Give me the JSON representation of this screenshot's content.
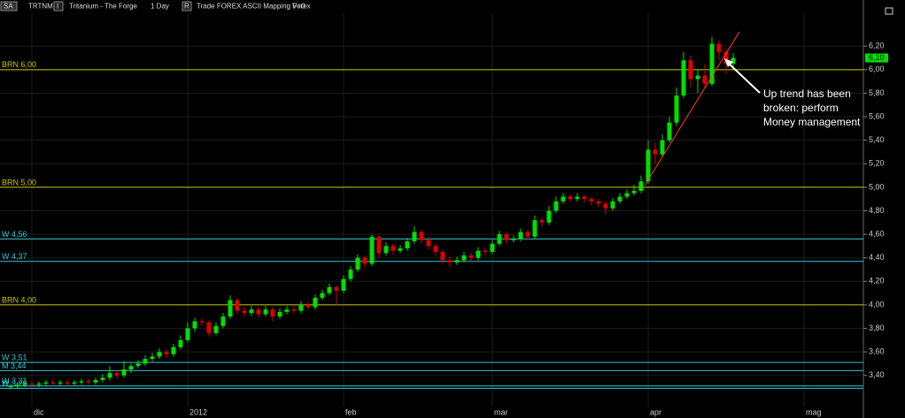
{
  "header": {
    "box1": "SA",
    "symbol": "TRTNM",
    "box2": "I",
    "name": "Tritanium - The Forge",
    "interval": "1 Day",
    "box3": "R",
    "info": "Trade  FOREX  ASCII Mapping  Forex",
    "volume": "V=0"
  },
  "chart_data": {
    "type": "candlestick",
    "ylim": [
      3.135,
      6.48
    ],
    "yticks": [
      {
        "value": 3.4,
        "label": "3,40"
      },
      {
        "value": 3.6,
        "label": "3,60"
      },
      {
        "value": 3.8,
        "label": "3,80"
      },
      {
        "value": 4.0,
        "label": "4,00"
      },
      {
        "value": 4.2,
        "label": "4,20"
      },
      {
        "value": 4.4,
        "label": "4,40"
      },
      {
        "value": 4.6,
        "label": "4,60"
      },
      {
        "value": 4.8,
        "label": "4,80"
      },
      {
        "value": 5.0,
        "label": "5,00"
      },
      {
        "value": 5.2,
        "label": "5,20"
      },
      {
        "value": 5.4,
        "label": "5,40"
      },
      {
        "value": 5.6,
        "label": "5,60"
      },
      {
        "value": 5.8,
        "label": "5,80"
      },
      {
        "value": 6.0,
        "label": "6,00"
      },
      {
        "value": 6.2,
        "label": "6,20"
      }
    ],
    "categories": [
      null,
      null,
      null,
      null,
      "dic",
      null,
      null,
      null,
      null,
      null,
      null,
      null,
      null,
      null,
      null,
      null,
      null,
      null,
      null,
      null,
      null,
      null,
      null,
      null,
      null,
      null,
      "2012",
      null,
      null,
      null,
      null,
      null,
      null,
      null,
      null,
      null,
      null,
      null,
      null,
      null,
      null,
      null,
      null,
      null,
      null,
      null,
      null,
      null,
      "feb",
      null,
      null,
      null,
      null,
      null,
      null,
      null,
      null,
      null,
      null,
      null,
      null,
      null,
      null,
      null,
      null,
      null,
      null,
      null,
      null,
      "mar",
      null,
      null,
      null,
      null,
      null,
      null,
      null,
      null,
      null,
      null,
      null,
      null,
      null,
      null,
      null,
      null,
      null,
      null,
      null,
      null,
      null,
      "apr",
      null,
      null,
      null,
      null,
      null,
      null,
      null,
      null,
      null,
      null,
      null,
      null,
      null,
      null,
      null,
      null,
      null,
      null,
      null,
      null,
      null,
      "mag",
      null,
      null
    ],
    "candles": [
      [
        3.3,
        3.33,
        3.28,
        3.31
      ],
      [
        3.31,
        3.34,
        3.29,
        3.32
      ],
      [
        3.32,
        3.35,
        3.3,
        3.33
      ],
      [
        3.33,
        3.35,
        3.3,
        3.32
      ],
      [
        3.32,
        3.35,
        3.3,
        3.33
      ],
      [
        3.33,
        3.36,
        3.31,
        3.34
      ],
      [
        3.34,
        3.36,
        3.31,
        3.33
      ],
      [
        3.33,
        3.36,
        3.31,
        3.34
      ],
      [
        3.34,
        3.36,
        3.31,
        3.33
      ],
      [
        3.33,
        3.36,
        3.31,
        3.34
      ],
      [
        3.34,
        3.37,
        3.32,
        3.35
      ],
      [
        3.35,
        3.37,
        3.32,
        3.34
      ],
      [
        3.34,
        3.38,
        3.32,
        3.36
      ],
      [
        3.36,
        3.41,
        3.34,
        3.38
      ],
      [
        3.38,
        3.48,
        3.36,
        3.42
      ],
      [
        3.42,
        3.45,
        3.37,
        3.4
      ],
      [
        3.4,
        3.52,
        3.38,
        3.45
      ],
      [
        3.45,
        3.5,
        3.42,
        3.48
      ],
      [
        3.48,
        3.53,
        3.46,
        3.5
      ],
      [
        3.5,
        3.57,
        3.48,
        3.54
      ],
      [
        3.54,
        3.59,
        3.52,
        3.56
      ],
      [
        3.56,
        3.63,
        3.54,
        3.6
      ],
      [
        3.6,
        3.62,
        3.55,
        3.58
      ],
      [
        3.58,
        3.67,
        3.56,
        3.64
      ],
      [
        3.64,
        3.74,
        3.62,
        3.7
      ],
      [
        3.7,
        3.85,
        3.68,
        3.8
      ],
      [
        3.8,
        3.89,
        3.77,
        3.86
      ],
      [
        3.86,
        3.88,
        3.82,
        3.85
      ],
      [
        3.85,
        3.87,
        3.73,
        3.76
      ],
      [
        3.76,
        3.85,
        3.74,
        3.82
      ],
      [
        3.82,
        3.93,
        3.8,
        3.9
      ],
      [
        3.9,
        4.08,
        3.88,
        4.04
      ],
      [
        4.04,
        4.06,
        3.92,
        3.95
      ],
      [
        3.95,
        3.98,
        3.9,
        3.93
      ],
      [
        3.93,
        3.99,
        3.91,
        3.96
      ],
      [
        3.96,
        3.98,
        3.89,
        3.92
      ],
      [
        3.92,
        3.99,
        3.9,
        3.96
      ],
      [
        3.96,
        3.98,
        3.86,
        3.9
      ],
      [
        3.9,
        3.97,
        3.88,
        3.94
      ],
      [
        3.94,
        3.99,
        3.92,
        3.96
      ],
      [
        3.96,
        3.99,
        3.93,
        3.95
      ],
      [
        3.95,
        4.03,
        3.93,
        4.0
      ],
      [
        4.0,
        4.02,
        3.96,
        3.98
      ],
      [
        3.98,
        4.09,
        3.96,
        4.06
      ],
      [
        4.06,
        4.13,
        4.04,
        4.1
      ],
      [
        4.1,
        4.18,
        4.08,
        4.15
      ],
      [
        4.15,
        4.17,
        4.0,
        4.12
      ],
      [
        4.12,
        4.25,
        4.1,
        4.22
      ],
      [
        4.22,
        4.33,
        4.2,
        4.3
      ],
      [
        4.3,
        4.43,
        4.28,
        4.4
      ],
      [
        4.4,
        4.42,
        4.32,
        4.35
      ],
      [
        4.35,
        4.6,
        4.33,
        4.58
      ],
      [
        4.58,
        4.6,
        4.4,
        4.44
      ],
      [
        4.44,
        4.53,
        4.42,
        4.5
      ],
      [
        4.5,
        4.52,
        4.43,
        4.46
      ],
      [
        4.46,
        4.51,
        4.44,
        4.48
      ],
      [
        4.48,
        4.57,
        4.46,
        4.54
      ],
      [
        4.54,
        4.67,
        4.52,
        4.62
      ],
      [
        4.62,
        4.64,
        4.52,
        4.55
      ],
      [
        4.55,
        4.58,
        4.47,
        4.5
      ],
      [
        4.5,
        4.52,
        4.42,
        4.45
      ],
      [
        4.45,
        4.47,
        4.35,
        4.38
      ],
      [
        4.38,
        4.41,
        4.32,
        4.36
      ],
      [
        4.36,
        4.41,
        4.34,
        4.38
      ],
      [
        4.38,
        4.45,
        4.36,
        4.42
      ],
      [
        4.42,
        4.44,
        4.37,
        4.4
      ],
      [
        4.4,
        4.49,
        4.38,
        4.46
      ],
      [
        4.46,
        4.48,
        4.42,
        4.45
      ],
      [
        4.45,
        4.55,
        4.43,
        4.52
      ],
      [
        4.52,
        4.63,
        4.5,
        4.6
      ],
      [
        4.6,
        4.62,
        4.52,
        4.55
      ],
      [
        4.55,
        4.59,
        4.53,
        4.56
      ],
      [
        4.56,
        4.65,
        4.54,
        4.62
      ],
      [
        4.62,
        4.64,
        4.55,
        4.58
      ],
      [
        4.58,
        4.76,
        4.56,
        4.72
      ],
      [
        4.72,
        4.74,
        4.66,
        4.7
      ],
      [
        4.7,
        4.84,
        4.68,
        4.8
      ],
      [
        4.8,
        4.92,
        4.78,
        4.88
      ],
      [
        4.88,
        4.95,
        4.86,
        4.92
      ],
      [
        4.92,
        4.94,
        4.88,
        4.9
      ],
      [
        4.9,
        4.95,
        4.88,
        4.92
      ],
      [
        4.92,
        4.94,
        4.87,
        4.9
      ],
      [
        4.9,
        4.92,
        4.85,
        4.88
      ],
      [
        4.88,
        4.9,
        4.83,
        4.86
      ],
      [
        4.86,
        4.88,
        4.77,
        4.82
      ],
      [
        4.82,
        4.91,
        4.8,
        4.88
      ],
      [
        4.88,
        4.95,
        4.86,
        4.92
      ],
      [
        4.92,
        4.98,
        4.9,
        4.95
      ],
      [
        4.95,
        5.02,
        4.93,
        4.97
      ],
      [
        4.97,
        5.1,
        4.95,
        5.05
      ],
      [
        5.05,
        5.4,
        5.03,
        5.32
      ],
      [
        5.32,
        5.38,
        5.2,
        5.28
      ],
      [
        5.28,
        5.45,
        5.26,
        5.4
      ],
      [
        5.4,
        5.6,
        5.38,
        5.55
      ],
      [
        5.55,
        5.85,
        5.52,
        5.78
      ],
      [
        5.78,
        6.15,
        5.76,
        6.08
      ],
      [
        6.08,
        6.12,
        5.85,
        5.92
      ],
      [
        5.92,
        6.0,
        5.8,
        5.95
      ],
      [
        5.95,
        6.05,
        5.84,
        5.88
      ],
      [
        5.88,
        6.28,
        5.86,
        6.22
      ],
      [
        6.22,
        6.25,
        6.08,
        6.15
      ],
      [
        6.15,
        6.18,
        5.96,
        6.05
      ],
      [
        6.05,
        6.14,
        6.0,
        6.1
      ],
      null,
      null,
      null,
      null,
      null,
      null,
      null,
      null,
      null,
      null,
      null,
      null,
      null
    ],
    "up_color": "#00e000",
    "down_color": "#e00000",
    "last_value_label": "6,10",
    "levels": [
      {
        "value": 6.0,
        "label": "BRN 6,00",
        "color": "#c8c800"
      },
      {
        "value": 5.0,
        "label": "BRN 5,00",
        "color": "#c8c800"
      },
      {
        "value": 4.56,
        "label": "W 4,56",
        "color": "#30c8d8"
      },
      {
        "value": 4.37,
        "label": "W 4,37",
        "color": "#30c8d8"
      },
      {
        "value": 4.0,
        "label": "BRN 4,00",
        "color": "#c8c800"
      },
      {
        "value": 3.51,
        "label": "W 3,51",
        "color": "#30c8d8"
      },
      {
        "value": 3.44,
        "label": "M 3,44",
        "color": "#30c8d8"
      },
      {
        "value": 3.31,
        "label": "W 3,31",
        "color": "#30c8d8"
      },
      {
        "value": 3.29,
        "label": "W 3,29",
        "color": "#30c8d8"
      }
    ],
    "annotation": "Up trend has been broken: perform Money management"
  }
}
